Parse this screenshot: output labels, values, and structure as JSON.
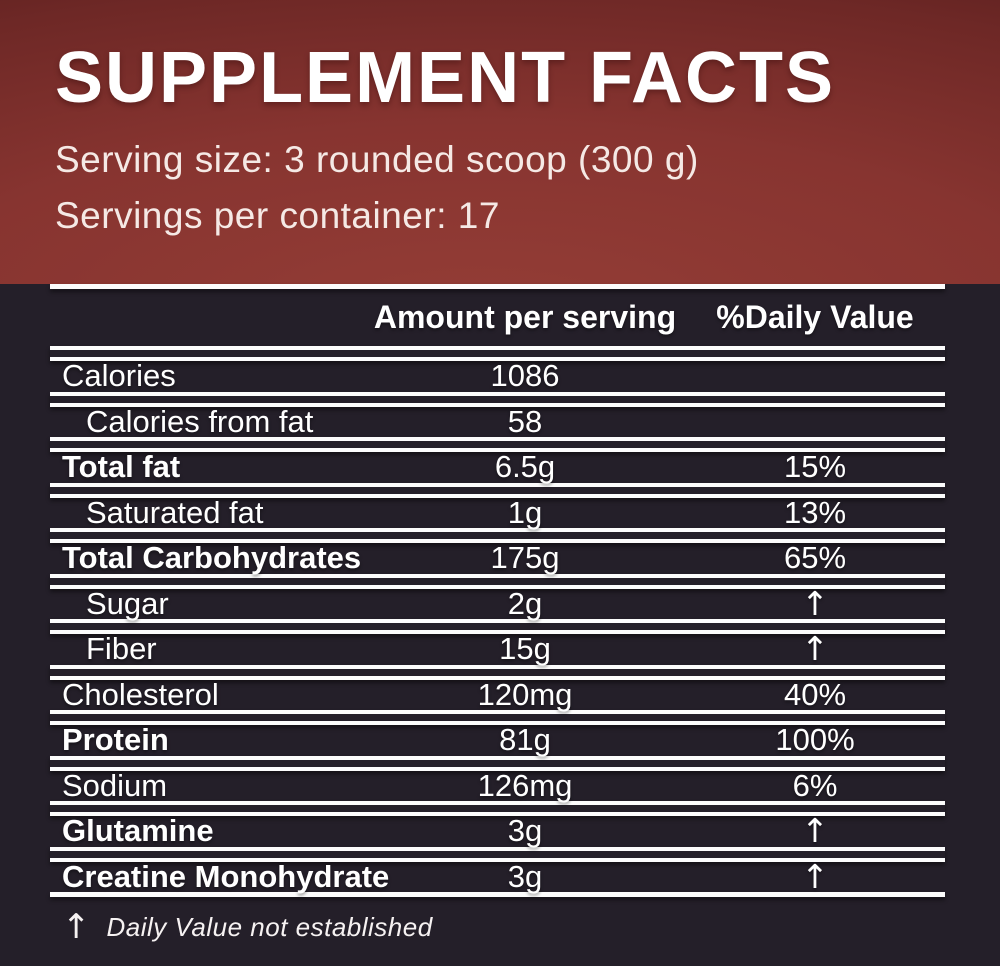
{
  "header": {
    "title": "SUPPLEMENT FACTS",
    "serving_size": "Serving size: 3 rounded scoop (300 g)",
    "servings_per_container": "Servings per container: 17"
  },
  "table": {
    "arrow_symbol": "↑",
    "headers": {
      "amount": "Amount per serving",
      "daily_value": "%Daily Value"
    },
    "rows": [
      {
        "name": "Calories",
        "amount": "1086",
        "dv": "",
        "bold": false,
        "indent": false
      },
      {
        "name": "Calories from fat",
        "amount": "58",
        "dv": "",
        "bold": false,
        "indent": true
      },
      {
        "name": "Total fat",
        "amount": "6.5g",
        "dv": "15%",
        "bold": true,
        "indent": false
      },
      {
        "name": "Saturated fat",
        "amount": "1g",
        "dv": "13%",
        "bold": false,
        "indent": true
      },
      {
        "name": "Total Carbohydrates",
        "amount": "175g",
        "dv": "65%",
        "bold": true,
        "indent": false
      },
      {
        "name": "Sugar",
        "amount": "2g",
        "dv": "↑",
        "bold": false,
        "indent": true
      },
      {
        "name": "Fiber",
        "amount": "15g",
        "dv": "↑",
        "bold": false,
        "indent": true
      },
      {
        "name": "Cholesterol",
        "amount": "120mg",
        "dv": "40%",
        "bold": false,
        "indent": false
      },
      {
        "name": "Protein",
        "amount": "81g",
        "dv": "100%",
        "bold": true,
        "indent": false
      },
      {
        "name": "Sodium",
        "amount": "126mg",
        "dv": "6%",
        "bold": false,
        "indent": false
      },
      {
        "name": "Glutamine",
        "amount": "3g",
        "dv": "↑",
        "bold": true,
        "indent": false
      },
      {
        "name": "Creatine Monohydrate",
        "amount": "3g",
        "dv": "↑",
        "bold": true,
        "indent": false
      }
    ]
  },
  "footnote": {
    "arrow": "↑",
    "text": "Daily Value not established"
  },
  "colors": {
    "header_red_light": "#943d36",
    "header_red_dark": "#561d1d",
    "panel_dark": "#241f29",
    "rule_white": "#fcfcfc",
    "text_white": "#ffffff"
  }
}
